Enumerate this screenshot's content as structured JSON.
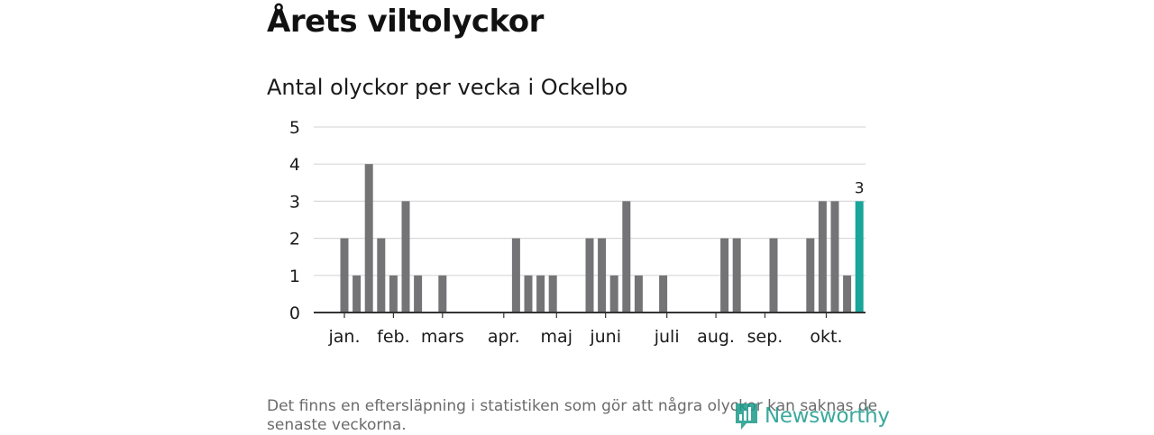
{
  "title": "Årets viltolyckor",
  "subtitle": "Antal olyckor per vecka i Ockelbo",
  "chart_data": {
    "type": "bar",
    "title": "Antal olyckor per vecka i Ockelbo",
    "xlabel": "",
    "ylabel": "",
    "ylim": [
      0,
      5
    ],
    "yticks": [
      "0",
      "1",
      "2",
      "3",
      "4",
      "5"
    ],
    "grid": true,
    "x_weeks": [
      1,
      2,
      3,
      4,
      5,
      6,
      7,
      8,
      9,
      10,
      11,
      12,
      13,
      14,
      15,
      16,
      17,
      18,
      19,
      20,
      21,
      22,
      23,
      24,
      25,
      26,
      27,
      28,
      29,
      30,
      31,
      32,
      33,
      34,
      35,
      36,
      37,
      38,
      39,
      40,
      41,
      42,
      43,
      44,
      45
    ],
    "values": [
      2,
      1,
      4,
      2,
      1,
      3,
      1,
      0,
      1,
      0,
      0,
      0,
      0,
      0,
      2,
      1,
      1,
      1,
      0,
      0,
      2,
      2,
      1,
      3,
      1,
      0,
      1,
      0,
      0,
      0,
      0,
      2,
      2,
      0,
      0,
      2,
      0,
      0,
      2,
      3,
      3,
      1,
      3,
      0,
      0
    ],
    "highlight_index": 42,
    "highlight_label": "3",
    "month_ticks": [
      {
        "label": "jan.",
        "week": 1.0
      },
      {
        "label": "feb.",
        "week": 5.0
      },
      {
        "label": "mars",
        "week": 9.0
      },
      {
        "label": "apr.",
        "week": 14.0
      },
      {
        "label": "maj",
        "week": 18.3
      },
      {
        "label": "juni",
        "week": 22.3
      },
      {
        "label": "juli",
        "week": 27.3
      },
      {
        "label": "aug.",
        "week": 31.3
      },
      {
        "label": "sep.",
        "week": 35.3
      },
      {
        "label": "okt.",
        "week": 40.3
      }
    ],
    "colors": {
      "bar": "#747476",
      "highlight": "#1aa59a",
      "grid": "#d9d9d9",
      "axis": "#333333"
    }
  },
  "footnote": "Det finns en eftersläpning i statistiken som gör att några olyckor kan saknas de senaste veckorna.",
  "logo": {
    "icon": "newsworthy-logo-icon",
    "text": "Newsworthy"
  }
}
